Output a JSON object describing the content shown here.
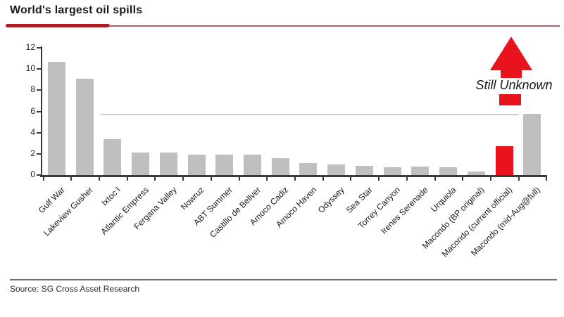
{
  "header": {
    "title": "World's largest oil spills"
  },
  "chart_data": {
    "type": "bar",
    "title": "World's largest oil spills",
    "categories": [
      "Gulf War",
      "Lakeview Gusher",
      "Ixtoc I",
      "Atlantic Empress",
      "Fergana Valley",
      "Nowruz",
      "ABT Summer",
      "Castillo de Bellver",
      "Amoco Cadiz",
      "Amoco Haven",
      "Odyssey",
      "Sea Star",
      "Torrey Canyon",
      "Irenes Serenade",
      "Urquiola",
      "Macondo (BP original)",
      "Macondo (current official)",
      "Macondo (mid-Aug@full)"
    ],
    "values": [
      10.7,
      9.1,
      3.4,
      2.15,
      2.1,
      1.9,
      1.9,
      1.9,
      1.6,
      1.1,
      1.0,
      0.85,
      0.75,
      0.8,
      0.7,
      0.3,
      2.75,
      5.75
    ],
    "xlabel": "",
    "ylabel": "",
    "ylim": [
      0,
      12
    ],
    "yticks": [
      0,
      2,
      4,
      6,
      8,
      10,
      12
    ],
    "grid": "off",
    "legend_position": "none",
    "reference_line": {
      "value": 5.7,
      "color": "#cdcdcd"
    },
    "highlight": {
      "category": "Macondo (current official)",
      "index": 16,
      "color": "#e8131d"
    },
    "annotation": {
      "text": "Still Unknown",
      "style": "red up arrow split by italic text",
      "target_category": "Macondo (current official)"
    }
  },
  "footer": {
    "source": "Source: SG Cross Asset Research"
  },
  "colors": {
    "bar_gray": "#bfbfbf",
    "highlight_red": "#e8131d",
    "axis": "#3a3a3a",
    "title_rule_dark": "#ab1d23",
    "title_rule_light": "#9e6468",
    "reference_line": "#cdcdcd",
    "text": "#1a1a1a"
  }
}
